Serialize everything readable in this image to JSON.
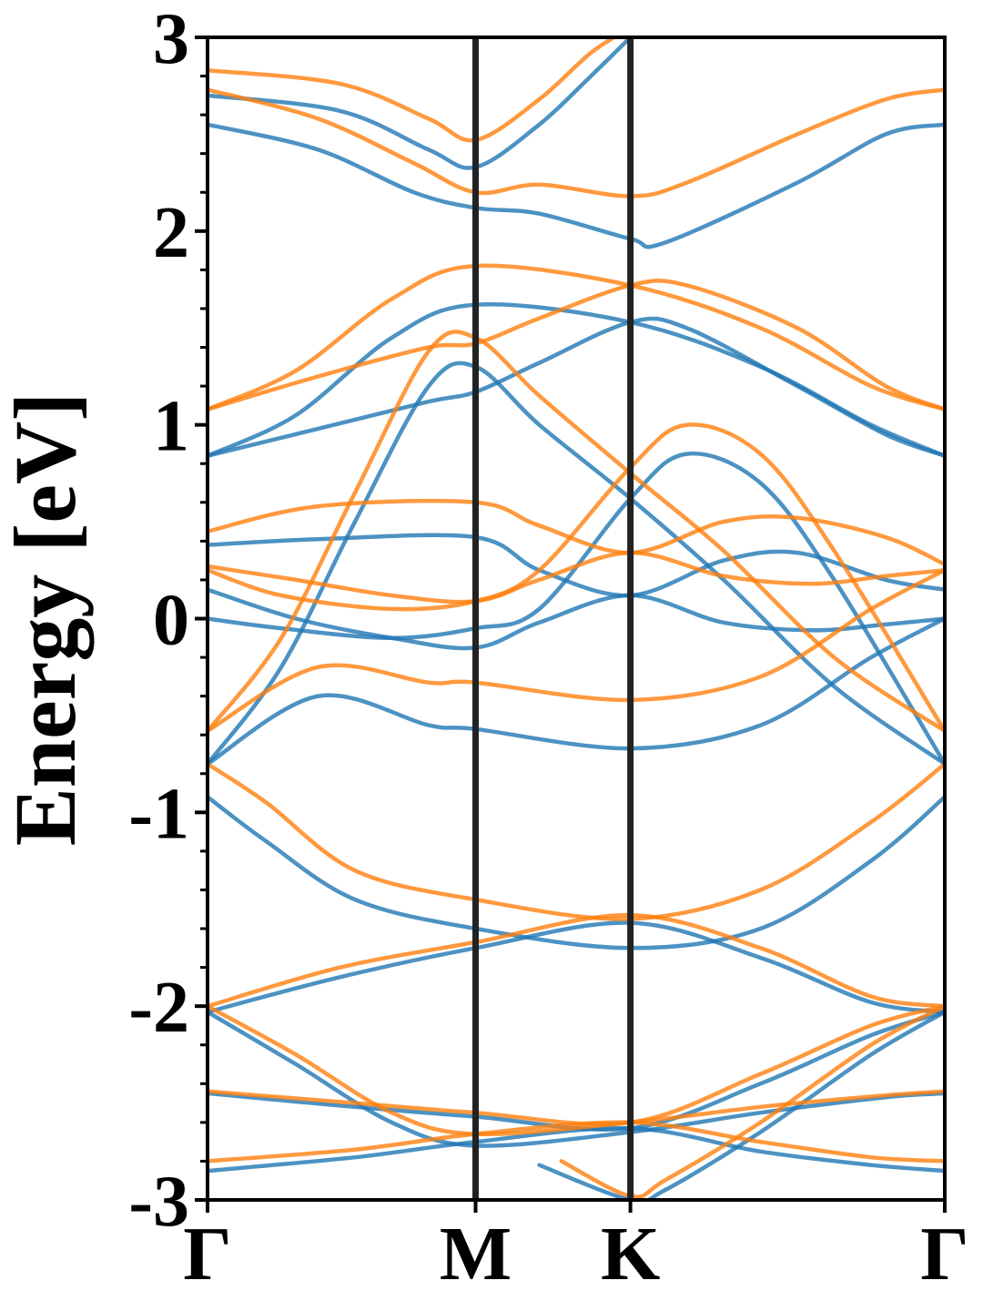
{
  "chart_data": {
    "type": "line",
    "title": "",
    "xlabel": "",
    "ylabel": "Energy [eV]",
    "ylim": [
      -3,
      3
    ],
    "yticks": [
      3,
      2,
      1,
      0,
      -1,
      -2,
      -3
    ],
    "ytick_labels": [
      "3",
      "2",
      "1",
      "0",
      "-1",
      "-2",
      "-3"
    ],
    "kpath": [
      {
        "label": "Γ",
        "x": 0.0
      },
      {
        "label": "M",
        "x": 0.3636
      },
      {
        "label": "K",
        "x": 0.5736
      },
      {
        "label": "Γ",
        "x": 1.0
      }
    ],
    "grid": false,
    "legend": "none",
    "colors": {
      "spin_up": "#1f77b4",
      "spin_down": "#ff7f0e",
      "kpoint_lines": "#222222"
    },
    "series": [
      {
        "color_key": "spin_up",
        "values": [
          [
            0,
            2.7
          ],
          [
            0.18,
            2.62
          ],
          [
            0.3,
            2.42
          ],
          [
            0.3636,
            2.33
          ],
          [
            0.45,
            2.55
          ],
          [
            0.52,
            2.8
          ],
          [
            0.5736,
            3.0
          ]
        ]
      },
      {
        "color_key": "spin_up",
        "values": [
          [
            0,
            2.55
          ],
          [
            0.15,
            2.42
          ],
          [
            0.28,
            2.2
          ],
          [
            0.3636,
            2.12
          ],
          [
            0.45,
            2.09
          ],
          [
            0.5736,
            1.96
          ],
          [
            0.62,
            1.94
          ],
          [
            0.8,
            2.25
          ],
          [
            0.92,
            2.5
          ],
          [
            1.0,
            2.55
          ]
        ]
      },
      {
        "color_key": "spin_up",
        "values": [
          [
            0,
            0.84
          ],
          [
            0.15,
            0.98
          ],
          [
            0.3,
            1.12
          ],
          [
            0.3636,
            1.17
          ],
          [
            0.45,
            1.32
          ],
          [
            0.5736,
            1.53
          ],
          [
            0.65,
            1.5
          ],
          [
            0.8,
            1.2
          ],
          [
            0.92,
            0.95
          ],
          [
            1.0,
            0.84
          ]
        ]
      },
      {
        "color_key": "spin_up",
        "values": [
          [
            0,
            0.84
          ],
          [
            0.12,
            1.05
          ],
          [
            0.25,
            1.45
          ],
          [
            0.3636,
            1.62
          ],
          [
            0.5736,
            1.53
          ],
          [
            0.75,
            1.3
          ],
          [
            0.9,
            1.0
          ],
          [
            1.0,
            0.84
          ]
        ]
      },
      {
        "color_key": "spin_up",
        "values": [
          [
            0,
            -0.75
          ],
          [
            0.1,
            -0.25
          ],
          [
            0.2,
            0.5
          ],
          [
            0.3,
            1.2
          ],
          [
            0.3636,
            1.3
          ],
          [
            0.45,
            1.0
          ],
          [
            0.5736,
            0.62
          ],
          [
            0.7,
            0.2
          ],
          [
            0.85,
            -0.35
          ],
          [
            1.0,
            -0.75
          ]
        ]
      },
      {
        "color_key": "spin_up",
        "values": [
          [
            0,
            0.38
          ],
          [
            0.15,
            0.41
          ],
          [
            0.3636,
            0.42
          ],
          [
            0.45,
            0.25
          ],
          [
            0.5736,
            0.12
          ],
          [
            0.7,
            0.3
          ],
          [
            0.8,
            0.34
          ],
          [
            0.92,
            0.2
          ],
          [
            1.0,
            0.15
          ]
        ]
      },
      {
        "color_key": "spin_up",
        "values": [
          [
            0,
            0.15
          ],
          [
            0.12,
            0.0
          ],
          [
            0.25,
            -0.1
          ],
          [
            0.3636,
            -0.15
          ],
          [
            0.45,
            -0.02
          ],
          [
            0.5736,
            0.12
          ],
          [
            0.7,
            -0.02
          ],
          [
            0.82,
            -0.06
          ],
          [
            0.92,
            -0.03
          ],
          [
            1.0,
            0.0
          ]
        ]
      },
      {
        "color_key": "spin_up",
        "values": [
          [
            0,
            0.0
          ],
          [
            0.1,
            -0.05
          ],
          [
            0.25,
            -0.1
          ],
          [
            0.3636,
            -0.05
          ],
          [
            0.45,
            0.05
          ],
          [
            0.5736,
            0.62
          ],
          [
            0.65,
            0.85
          ],
          [
            0.75,
            0.7
          ],
          [
            0.85,
            0.2
          ],
          [
            1.0,
            -0.75
          ]
        ]
      },
      {
        "color_key": "spin_up",
        "values": [
          [
            0,
            -0.75
          ],
          [
            0.15,
            -0.4
          ],
          [
            0.3,
            -0.55
          ],
          [
            0.3636,
            -0.57
          ],
          [
            0.5736,
            -0.67
          ],
          [
            0.75,
            -0.55
          ],
          [
            0.9,
            -0.2
          ],
          [
            1.0,
            0.0
          ]
        ]
      },
      {
        "color_key": "spin_up",
        "values": [
          [
            0,
            -0.92
          ],
          [
            0.08,
            -1.15
          ],
          [
            0.2,
            -1.45
          ],
          [
            0.3636,
            -1.6
          ],
          [
            0.5736,
            -1.7
          ],
          [
            0.75,
            -1.6
          ],
          [
            0.9,
            -1.25
          ],
          [
            1.0,
            -0.92
          ]
        ]
      },
      {
        "color_key": "spin_up",
        "values": [
          [
            0,
            -2.03
          ],
          [
            0.18,
            -1.85
          ],
          [
            0.3636,
            -1.7
          ],
          [
            0.5736,
            -1.57
          ],
          [
            0.75,
            -1.75
          ],
          [
            0.9,
            -1.98
          ],
          [
            1.0,
            -2.03
          ]
        ]
      },
      {
        "color_key": "spin_up",
        "values": [
          [
            0,
            -2.03
          ],
          [
            0.12,
            -2.3
          ],
          [
            0.25,
            -2.6
          ],
          [
            0.3636,
            -2.72
          ],
          [
            0.5736,
            -2.65
          ],
          [
            0.75,
            -2.55
          ],
          [
            0.92,
            -2.47
          ],
          [
            1.0,
            -2.45
          ]
        ]
      },
      {
        "color_key": "spin_up",
        "values": [
          [
            0,
            -2.45
          ],
          [
            0.2,
            -2.52
          ],
          [
            0.3636,
            -2.57
          ],
          [
            0.5736,
            -2.63
          ],
          [
            0.75,
            -2.4
          ],
          [
            0.9,
            -2.15
          ],
          [
            1.0,
            -2.03
          ]
        ]
      },
      {
        "color_key": "spin_up",
        "values": [
          [
            0,
            -2.85
          ],
          [
            0.2,
            -2.78
          ],
          [
            0.3636,
            -2.7
          ],
          [
            0.5736,
            -2.63
          ],
          [
            0.75,
            -2.75
          ],
          [
            0.9,
            -2.82
          ],
          [
            1.0,
            -2.85
          ]
        ]
      },
      {
        "color_key": "spin_up",
        "values": [
          [
            0.45,
            -2.82
          ],
          [
            0.5736,
            -3.0
          ],
          [
            0.62,
            -2.95
          ],
          [
            0.75,
            -2.65
          ],
          [
            0.9,
            -2.25
          ],
          [
            1.0,
            -2.03
          ]
        ]
      },
      {
        "color_key": "spin_down",
        "values": [
          [
            0,
            2.83
          ],
          [
            0.18,
            2.76
          ],
          [
            0.3,
            2.58
          ],
          [
            0.3636,
            2.47
          ],
          [
            0.45,
            2.68
          ],
          [
            0.52,
            2.92
          ],
          [
            0.5736,
            3.05
          ]
        ]
      },
      {
        "color_key": "spin_down",
        "values": [
          [
            0,
            2.73
          ],
          [
            0.15,
            2.58
          ],
          [
            0.28,
            2.35
          ],
          [
            0.3636,
            2.2
          ],
          [
            0.45,
            2.24
          ],
          [
            0.5736,
            2.18
          ],
          [
            0.65,
            2.25
          ],
          [
            0.8,
            2.5
          ],
          [
            0.92,
            2.68
          ],
          [
            1.0,
            2.73
          ]
        ]
      },
      {
        "color_key": "spin_down",
        "values": [
          [
            0,
            1.08
          ],
          [
            0.15,
            1.25
          ],
          [
            0.3,
            1.4
          ],
          [
            0.3636,
            1.42
          ],
          [
            0.45,
            1.55
          ],
          [
            0.5736,
            1.72
          ],
          [
            0.65,
            1.72
          ],
          [
            0.8,
            1.5
          ],
          [
            0.92,
            1.2
          ],
          [
            1.0,
            1.08
          ]
        ]
      },
      {
        "color_key": "spin_down",
        "values": [
          [
            0,
            1.08
          ],
          [
            0.12,
            1.28
          ],
          [
            0.25,
            1.65
          ],
          [
            0.3636,
            1.82
          ],
          [
            0.5736,
            1.72
          ],
          [
            0.75,
            1.5
          ],
          [
            0.9,
            1.2
          ],
          [
            1.0,
            1.08
          ]
        ]
      },
      {
        "color_key": "spin_down",
        "values": [
          [
            0,
            -0.58
          ],
          [
            0.1,
            -0.1
          ],
          [
            0.2,
            0.65
          ],
          [
            0.3,
            1.38
          ],
          [
            0.3636,
            1.45
          ],
          [
            0.45,
            1.15
          ],
          [
            0.5736,
            0.75
          ],
          [
            0.7,
            0.35
          ],
          [
            0.85,
            -0.2
          ],
          [
            1.0,
            -0.58
          ]
        ]
      },
      {
        "color_key": "spin_down",
        "values": [
          [
            0,
            0.45
          ],
          [
            0.15,
            0.58
          ],
          [
            0.3636,
            0.6
          ],
          [
            0.45,
            0.48
          ],
          [
            0.5736,
            0.34
          ],
          [
            0.7,
            0.5
          ],
          [
            0.8,
            0.52
          ],
          [
            0.92,
            0.42
          ],
          [
            1.0,
            0.28
          ]
        ]
      },
      {
        "color_key": "spin_down",
        "values": [
          [
            0,
            0.27
          ],
          [
            0.12,
            0.2
          ],
          [
            0.25,
            0.12
          ],
          [
            0.3636,
            0.09
          ],
          [
            0.45,
            0.2
          ],
          [
            0.5736,
            0.34
          ],
          [
            0.7,
            0.22
          ],
          [
            0.82,
            0.18
          ],
          [
            0.92,
            0.22
          ],
          [
            1.0,
            0.25
          ]
        ]
      },
      {
        "color_key": "spin_down",
        "values": [
          [
            0,
            0.25
          ],
          [
            0.1,
            0.12
          ],
          [
            0.25,
            0.05
          ],
          [
            0.3636,
            0.09
          ],
          [
            0.45,
            0.25
          ],
          [
            0.5736,
            0.78
          ],
          [
            0.65,
            1.0
          ],
          [
            0.75,
            0.85
          ],
          [
            0.85,
            0.35
          ],
          [
            1.0,
            -0.58
          ]
        ]
      },
      {
        "color_key": "spin_down",
        "values": [
          [
            0,
            -0.58
          ],
          [
            0.15,
            -0.25
          ],
          [
            0.3,
            -0.33
          ],
          [
            0.3636,
            -0.33
          ],
          [
            0.5736,
            -0.42
          ],
          [
            0.75,
            -0.3
          ],
          [
            0.9,
            0.05
          ],
          [
            1.0,
            0.25
          ]
        ]
      },
      {
        "color_key": "spin_down",
        "values": [
          [
            0,
            -0.75
          ],
          [
            0.08,
            -0.95
          ],
          [
            0.2,
            -1.3
          ],
          [
            0.3636,
            -1.45
          ],
          [
            0.5736,
            -1.55
          ],
          [
            0.75,
            -1.4
          ],
          [
            0.9,
            -1.05
          ],
          [
            1.0,
            -0.75
          ]
        ]
      },
      {
        "color_key": "spin_down",
        "values": [
          [
            0,
            -2.0
          ],
          [
            0.18,
            -1.8
          ],
          [
            0.3636,
            -1.67
          ],
          [
            0.5736,
            -1.53
          ],
          [
            0.75,
            -1.7
          ],
          [
            0.9,
            -1.95
          ],
          [
            1.0,
            -2.0
          ]
        ]
      },
      {
        "color_key": "spin_down",
        "values": [
          [
            0,
            -2.0
          ],
          [
            0.12,
            -2.25
          ],
          [
            0.25,
            -2.55
          ],
          [
            0.3636,
            -2.66
          ],
          [
            0.5736,
            -2.6
          ],
          [
            0.75,
            -2.52
          ],
          [
            0.92,
            -2.46
          ],
          [
            1.0,
            -2.44
          ]
        ]
      },
      {
        "color_key": "spin_down",
        "values": [
          [
            0,
            -2.44
          ],
          [
            0.2,
            -2.5
          ],
          [
            0.3636,
            -2.55
          ],
          [
            0.5736,
            -2.6
          ],
          [
            0.75,
            -2.35
          ],
          [
            0.9,
            -2.1
          ],
          [
            1.0,
            -2.0
          ]
        ]
      },
      {
        "color_key": "spin_down",
        "values": [
          [
            0,
            -2.8
          ],
          [
            0.2,
            -2.74
          ],
          [
            0.3636,
            -2.66
          ],
          [
            0.5736,
            -2.6
          ],
          [
            0.75,
            -2.7
          ],
          [
            0.9,
            -2.78
          ],
          [
            1.0,
            -2.8
          ]
        ]
      },
      {
        "color_key": "spin_down",
        "values": [
          [
            0.48,
            -2.8
          ],
          [
            0.5736,
            -2.98
          ],
          [
            0.62,
            -2.9
          ],
          [
            0.75,
            -2.6
          ],
          [
            0.9,
            -2.2
          ],
          [
            1.0,
            -2.0
          ]
        ]
      }
    ]
  }
}
